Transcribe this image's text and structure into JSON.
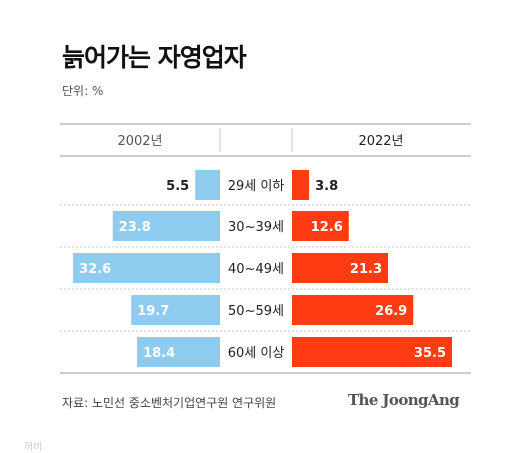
{
  "title": "늙어가는 자영업자",
  "unit_label": "단위: %",
  "source": "자료: 노민선 중소벤처기업연구원 연구위원",
  "logo": "The JoongAng",
  "colors": {
    "left_bar": "#8ecbee",
    "right_bar": "#ff3b14",
    "grid": "#c8c8c8",
    "text": "#222222"
  },
  "chart_data": {
    "type": "bar",
    "orientation": "horizontal-diverging",
    "categories": [
      "29세 이하",
      "30~39세",
      "40~49세",
      "50~59세",
      "60세 이상"
    ],
    "series": [
      {
        "name": "2002년",
        "values": [
          5.5,
          23.8,
          32.6,
          19.7,
          18.4
        ]
      },
      {
        "name": "2022년",
        "values": [
          3.8,
          12.6,
          21.3,
          26.9,
          35.5
        ]
      }
    ],
    "xlim": [
      0,
      35.5
    ]
  }
}
